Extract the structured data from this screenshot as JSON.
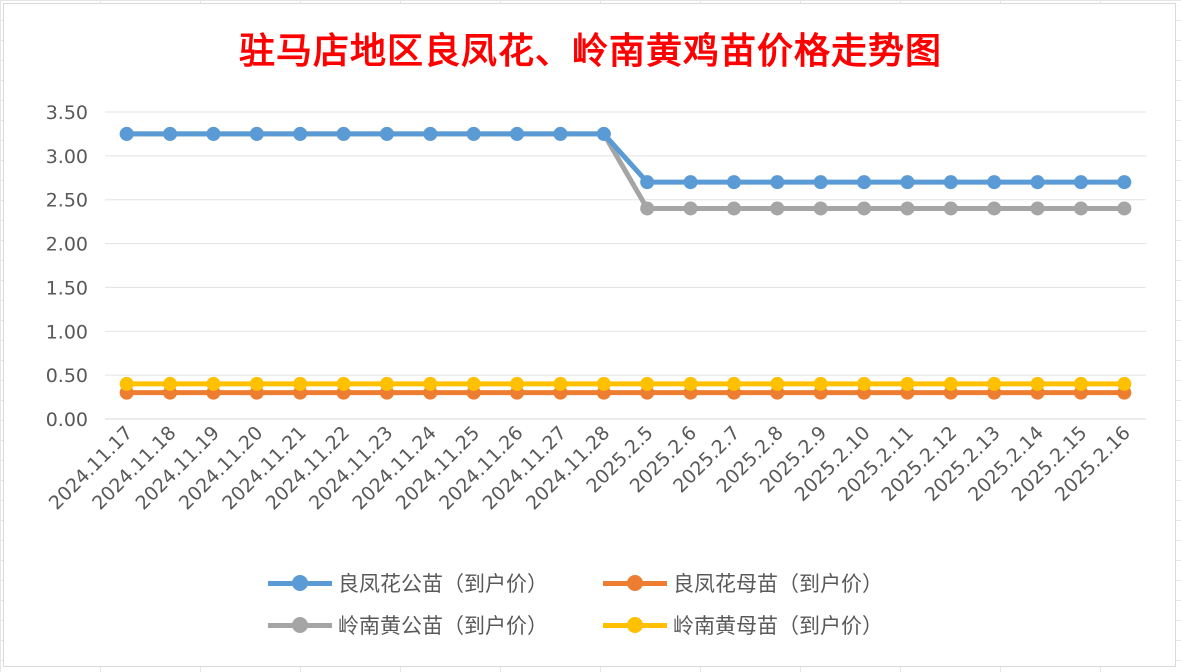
{
  "chart_data": {
    "type": "line",
    "title": "驻马店地区良凤花、岭南黄鸡苗价格走势图",
    "xlabel": "",
    "ylabel": "",
    "ylim": [
      0,
      3.5
    ],
    "yticks": [
      "0.00",
      "0.50",
      "1.00",
      "1.50",
      "2.00",
      "2.50",
      "3.00",
      "3.50"
    ],
    "grid": true,
    "legend_position": "bottom",
    "categories": [
      "2024.11.17",
      "2024.11.18",
      "2024.11.19",
      "2024.11.20",
      "2024.11.21",
      "2024.11.22",
      "2024.11.23",
      "2024.11.24",
      "2024.11.25",
      "2024.11.26",
      "2024.11.27",
      "2024.11.28",
      "2025.2.5",
      "2025.2.6",
      "2025.2.7",
      "2025.2.8",
      "2025.2.9",
      "2025.2.10",
      "2025.2.11",
      "2025.2.12",
      "2025.2.13",
      "2025.2.14",
      "2025.2.15",
      "2025.2.16"
    ],
    "series": [
      {
        "name": "良凤花公苗（到户价）",
        "color": "#5b9bd5",
        "values": [
          3.25,
          3.25,
          3.25,
          3.25,
          3.25,
          3.25,
          3.25,
          3.25,
          3.25,
          3.25,
          3.25,
          3.25,
          2.7,
          2.7,
          2.7,
          2.7,
          2.7,
          2.7,
          2.7,
          2.7,
          2.7,
          2.7,
          2.7,
          2.7
        ]
      },
      {
        "name": "良凤花母苗（到户价）",
        "color": "#ed7d31",
        "values": [
          0.3,
          0.3,
          0.3,
          0.3,
          0.3,
          0.3,
          0.3,
          0.3,
          0.3,
          0.3,
          0.3,
          0.3,
          0.3,
          0.3,
          0.3,
          0.3,
          0.3,
          0.3,
          0.3,
          0.3,
          0.3,
          0.3,
          0.3,
          0.3
        ]
      },
      {
        "name": "岭南黄公苗（到户价）",
        "color": "#a5a5a5",
        "values": [
          3.25,
          3.25,
          3.25,
          3.25,
          3.25,
          3.25,
          3.25,
          3.25,
          3.25,
          3.25,
          3.25,
          3.25,
          2.4,
          2.4,
          2.4,
          2.4,
          2.4,
          2.4,
          2.4,
          2.4,
          2.4,
          2.4,
          2.4,
          2.4
        ]
      },
      {
        "name": "岭南黄母苗（到户价）",
        "color": "#ffc000",
        "values": [
          0.4,
          0.4,
          0.4,
          0.4,
          0.4,
          0.4,
          0.4,
          0.4,
          0.4,
          0.4,
          0.4,
          0.4,
          0.4,
          0.4,
          0.4,
          0.4,
          0.4,
          0.4,
          0.4,
          0.4,
          0.4,
          0.4,
          0.4,
          0.4
        ]
      }
    ]
  }
}
